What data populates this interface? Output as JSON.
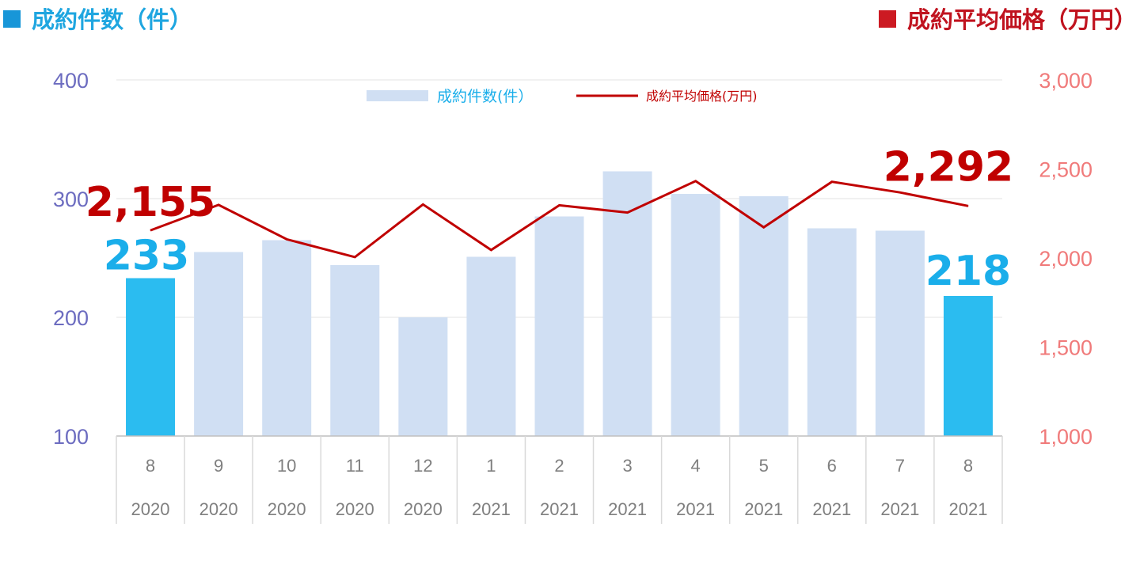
{
  "header": {
    "left_title": "成約件数（件）",
    "right_title": "成約平均価格（万円）",
    "left_color": "#1896d8",
    "right_color": "#cc1a22"
  },
  "chart_data": {
    "type": "bar+line",
    "categories": [
      {
        "month": "8",
        "year": "2020"
      },
      {
        "month": "9",
        "year": "2020"
      },
      {
        "month": "10",
        "year": "2020"
      },
      {
        "month": "11",
        "year": "2020"
      },
      {
        "month": "12",
        "year": "2020"
      },
      {
        "month": "1",
        "year": "2021"
      },
      {
        "month": "2",
        "year": "2021"
      },
      {
        "month": "3",
        "year": "2021"
      },
      {
        "month": "4",
        "year": "2021"
      },
      {
        "month": "5",
        "year": "2021"
      },
      {
        "month": "6",
        "year": "2021"
      },
      {
        "month": "7",
        "year": "2021"
      },
      {
        "month": "8",
        "year": "2021"
      }
    ],
    "series": [
      {
        "name": "成約件数(件）",
        "type": "bar",
        "axis": "left",
        "values": [
          233,
          255,
          265,
          244,
          200,
          251,
          285,
          323,
          304,
          302,
          275,
          273,
          218
        ],
        "color": "#d0dff3",
        "highlight_color": "#2bbcf0",
        "highlight_indices": [
          0,
          12
        ]
      },
      {
        "name": "成約平均価格(万円)",
        "type": "line",
        "axis": "right",
        "values": [
          2155,
          2298,
          2105,
          2005,
          2301,
          2045,
          2296,
          2255,
          2432,
          2172,
          2428,
          2368,
          2292
        ],
        "color": "#c00000"
      }
    ],
    "y_left": {
      "min": 100,
      "max": 400,
      "ticks": [
        "100",
        "200",
        "300",
        "400"
      ],
      "color": "#6c6cc0"
    },
    "y_right": {
      "min": 1000,
      "max": 3000,
      "ticks": [
        "1,000",
        "1,500",
        "2,000",
        "2,500",
        "3,000"
      ],
      "color": "#f07a7a"
    },
    "annotations": {
      "start_count": "233",
      "end_count": "218",
      "start_price": "2,155",
      "end_price": "2,292",
      "count_color": "#1aaeea",
      "price_color": "#c00000"
    },
    "legend_position": "top-center",
    "grid": true
  }
}
